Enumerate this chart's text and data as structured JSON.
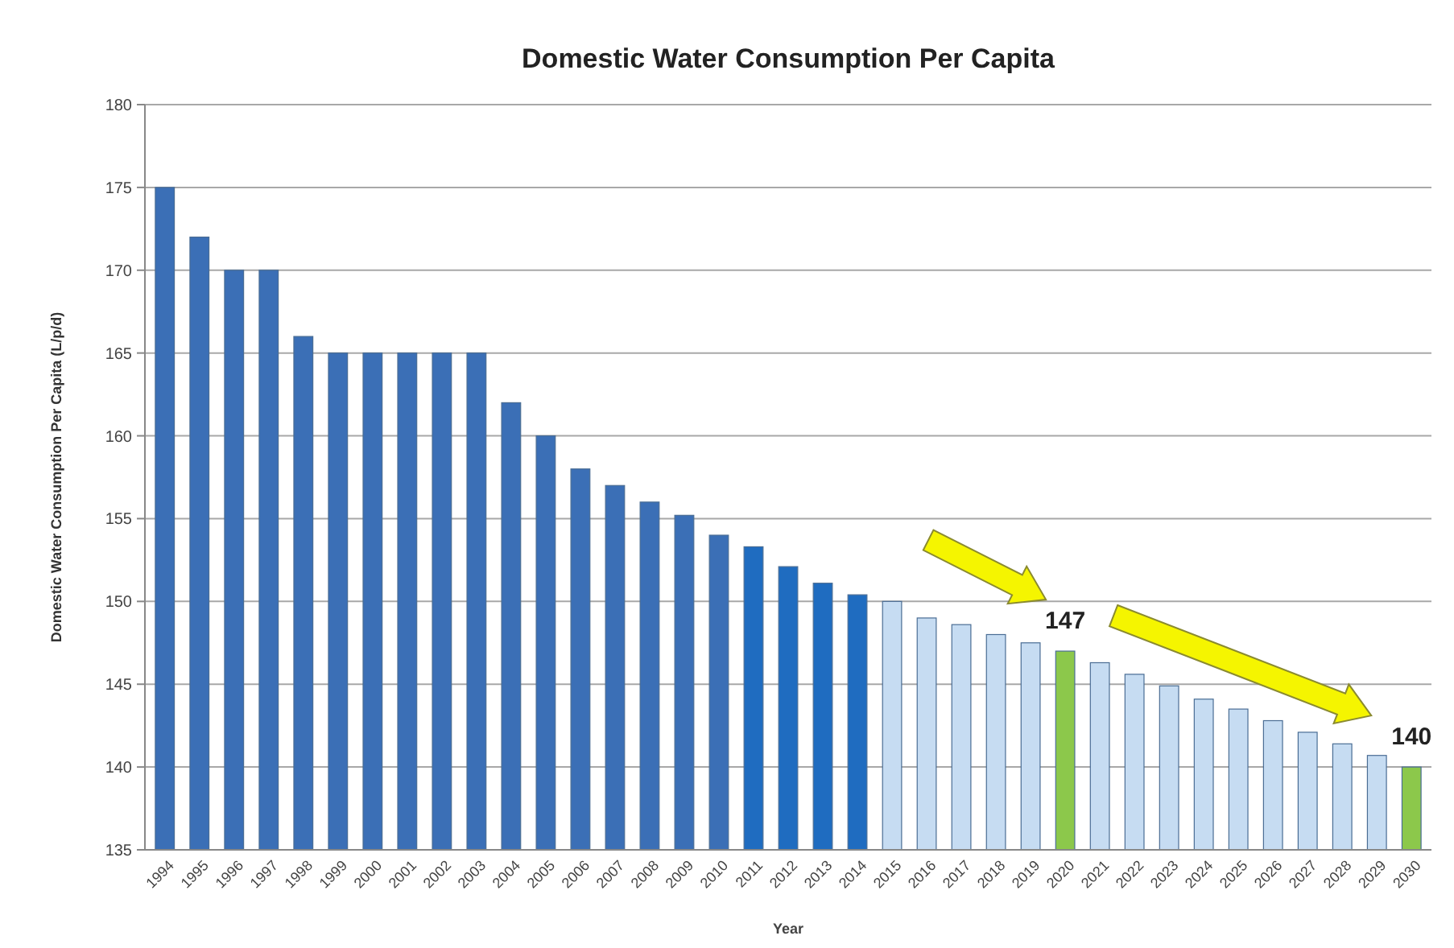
{
  "chart_data": {
    "type": "bar",
    "title": "Domestic Water Consumption Per Capita",
    "xlabel": "Year",
    "ylabel": "Domestic Water Consumption Per Capita (L/p/d)",
    "categories": [
      "1994",
      "1995",
      "1996",
      "1997",
      "1998",
      "1999",
      "2000",
      "2001",
      "2002",
      "2003",
      "2004",
      "2005",
      "2006",
      "2007",
      "2008",
      "2009",
      "2010",
      "2011",
      "2012",
      "2013",
      "2014",
      "2015",
      "2016",
      "2017",
      "2018",
      "2019",
      "2020",
      "2021",
      "2022",
      "2023",
      "2024",
      "2025",
      "2026",
      "2027",
      "2028",
      "2029",
      "2030"
    ],
    "values": [
      175,
      172,
      170,
      170,
      166,
      165,
      165,
      165,
      165,
      165,
      162,
      160,
      158,
      157,
      156,
      155.2,
      154,
      153.3,
      152.1,
      151.1,
      150.4,
      150,
      149,
      148.6,
      148,
      147.5,
      147,
      146.3,
      145.6,
      144.9,
      144.1,
      143.5,
      142.8,
      142.1,
      141.4,
      140.7,
      140
    ],
    "colors": [
      "#3b6fb6",
      "#3b6fb6",
      "#3b6fb6",
      "#3b6fb6",
      "#3b6fb6",
      "#3b6fb6",
      "#3b6fb6",
      "#3b6fb6",
      "#3b6fb6",
      "#3b6fb6",
      "#3b6fb6",
      "#3b6fb6",
      "#3b6fb6",
      "#3b6fb6",
      "#3b6fb6",
      "#3b6fb6",
      "#3b6fb6",
      "#1f6cc0",
      "#1f6cc0",
      "#1f6cc0",
      "#1f6cc0",
      "#c6dcf2",
      "#c6dcf2",
      "#c6dcf2",
      "#c6dcf2",
      "#c6dcf2",
      "#8cc84b",
      "#c6dcf2",
      "#c6dcf2",
      "#c6dcf2",
      "#c6dcf2",
      "#c6dcf2",
      "#c6dcf2",
      "#c6dcf2",
      "#c6dcf2",
      "#c6dcf2",
      "#8cc84b"
    ],
    "ylim": [
      135,
      180
    ],
    "yticks": [
      135,
      140,
      145,
      150,
      155,
      160,
      165,
      170,
      175,
      180
    ],
    "grid": "y",
    "annotations": [
      {
        "text": "147",
        "x": "2020",
        "y": 147
      },
      {
        "text": "140",
        "x": "2030",
        "y": 140
      }
    ]
  }
}
